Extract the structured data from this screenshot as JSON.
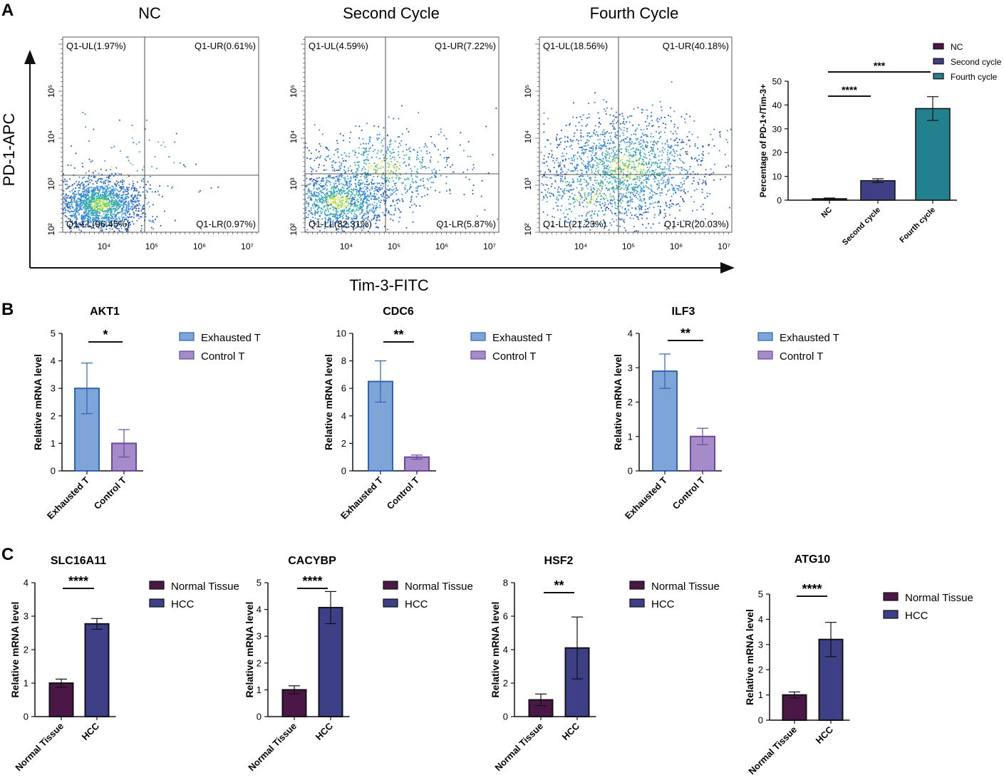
{
  "panel_labels": {
    "a": "A",
    "b": "B",
    "c": "C"
  },
  "colors": {
    "nc": "#4b1747",
    "second": "#3e3f85",
    "fourth": "#23808f",
    "exhausted": "#7fa4d8",
    "exhausted_edge": "#2f64ae",
    "control": "#a68bc9",
    "control_edge": "#6a48a0",
    "normal": "#4b1747",
    "hcc": "#3d3f87"
  },
  "flow": {
    "y_axis_label": "PD-1-APC",
    "x_axis_label": "Tim-3-FITC",
    "y_ticks": [
      "10²",
      "10³",
      "10⁴",
      "10⁵"
    ],
    "x_ticks": [
      "10⁴",
      "10⁵",
      "10⁶",
      "10⁷"
    ],
    "panels": [
      {
        "title": "NC",
        "ul": "Q1-UL(1.97%)",
        "ur": "Q1-UR(0.61%)",
        "ll": "Q1-LL(96.45%)",
        "lr": "Q1-LR(0.97%)"
      },
      {
        "title": "Second Cycle",
        "ul": "Q1-UL(4.59%)",
        "ur": "Q1-UR(7.22%)",
        "ll": "Q1-LL(82.31%)",
        "lr": "Q1-LR(5.87%)"
      },
      {
        "title": "Fourth Cycle",
        "ul": "Q1-UL(18.56%)",
        "ur": "Q1-UR(40.18%)",
        "ll": "Q1-LL(21.23%)",
        "lr": "Q1-LR(20.03%)"
      }
    ]
  },
  "chart_data": [
    {
      "id": "pd1tim3",
      "type": "bar",
      "title": "",
      "ylabel": "Percentage of PD-1+/Tim-3+",
      "xlabel": "",
      "ylim": [
        0,
        50
      ],
      "yticks": [
        0,
        10,
        20,
        30,
        40,
        50
      ],
      "categories": [
        "NC",
        "Second cycle",
        "Fourth cycle"
      ],
      "values": [
        0.6,
        8.2,
        38.5
      ],
      "errors": [
        0.3,
        0.8,
        5.0
      ],
      "legend": [
        "NC",
        "Second cycle",
        "Fourth cycle"
      ],
      "significance": [
        {
          "from": 0,
          "to": 1,
          "label": "****"
        },
        {
          "from": 0,
          "to": 2,
          "label": "***"
        }
      ]
    },
    {
      "id": "akt1",
      "type": "bar",
      "title": "AKT1",
      "ylabel": "Relative mRNA level",
      "ylim": [
        0,
        5
      ],
      "yticks": [
        0,
        1,
        2,
        3,
        4,
        5
      ],
      "categories": [
        "Exhausted T",
        "Control T"
      ],
      "values": [
        3.0,
        1.0
      ],
      "errors": [
        0.92,
        0.5
      ],
      "legend": [
        "Exhausted T",
        "Control T"
      ],
      "significance": [
        {
          "from": 0,
          "to": 1,
          "label": "*"
        }
      ]
    },
    {
      "id": "cdc6",
      "type": "bar",
      "title": "CDC6",
      "ylabel": "Relative mRNA level",
      "ylim": [
        0,
        10
      ],
      "yticks": [
        0,
        2,
        4,
        6,
        8,
        10
      ],
      "categories": [
        "Exhausted T",
        "Control T"
      ],
      "values": [
        6.5,
        1.0
      ],
      "errors": [
        1.5,
        0.15
      ],
      "legend": [
        "Exhausted T",
        "Control T"
      ],
      "significance": [
        {
          "from": 0,
          "to": 1,
          "label": "**"
        }
      ]
    },
    {
      "id": "ilf3",
      "type": "bar",
      "title": "ILF3",
      "ylabel": "Relative mRNA level",
      "ylim": [
        0,
        4
      ],
      "yticks": [
        0,
        1,
        2,
        3,
        4
      ],
      "categories": [
        "Exhausted T",
        "Control T"
      ],
      "values": [
        2.9,
        1.0
      ],
      "errors": [
        0.5,
        0.24
      ],
      "legend": [
        "Exhausted T",
        "Control T"
      ],
      "significance": [
        {
          "from": 0,
          "to": 1,
          "label": "**"
        }
      ]
    },
    {
      "id": "slc16a11",
      "type": "bar",
      "title": "SLC16A11",
      "ylabel": "Relative mRNA level",
      "ylim": [
        0,
        4
      ],
      "yticks": [
        0,
        1,
        2,
        3,
        4
      ],
      "categories": [
        "Normal Tissue",
        "HCC"
      ],
      "values": [
        1.0,
        2.77
      ],
      "errors": [
        0.12,
        0.16
      ],
      "legend": [
        "Normal Tissue",
        "HCC"
      ],
      "significance": [
        {
          "from": 0,
          "to": 1,
          "label": "****"
        }
      ]
    },
    {
      "id": "cacybp",
      "type": "bar",
      "title": "CACYBP",
      "ylabel": "Relative mRNA level",
      "ylim": [
        0,
        5
      ],
      "yticks": [
        0,
        1,
        2,
        3,
        4,
        5
      ],
      "categories": [
        "Normal Tissue",
        "HCC"
      ],
      "values": [
        1.0,
        4.07
      ],
      "errors": [
        0.15,
        0.6
      ],
      "legend": [
        "Normal Tissue",
        "HCC"
      ],
      "significance": [
        {
          "from": 0,
          "to": 1,
          "label": "****"
        }
      ]
    },
    {
      "id": "hsf2",
      "type": "bar",
      "title": "HSF2",
      "ylabel": "Relative mRNA level",
      "ylim": [
        0,
        8
      ],
      "yticks": [
        0,
        2,
        4,
        6,
        8
      ],
      "categories": [
        "Normal Tissue",
        "HCC"
      ],
      "values": [
        1.0,
        4.1
      ],
      "errors": [
        0.35,
        1.85
      ],
      "legend": [
        "Normal Tissue",
        "HCC"
      ],
      "significance": [
        {
          "from": 0,
          "to": 1,
          "label": "**"
        }
      ]
    },
    {
      "id": "atg10",
      "type": "bar",
      "title": "ATG10",
      "ylabel": "Relative mRNA level",
      "ylim": [
        0,
        5
      ],
      "yticks": [
        0,
        1,
        2,
        3,
        4,
        5
      ],
      "categories": [
        "Normal Tissue",
        "HCC"
      ],
      "values": [
        1.0,
        3.2
      ],
      "errors": [
        0.12,
        0.68
      ],
      "legend": [
        "Normal Tissue",
        "HCC"
      ],
      "significance": [
        {
          "from": 0,
          "to": 1,
          "label": "****"
        }
      ]
    }
  ]
}
